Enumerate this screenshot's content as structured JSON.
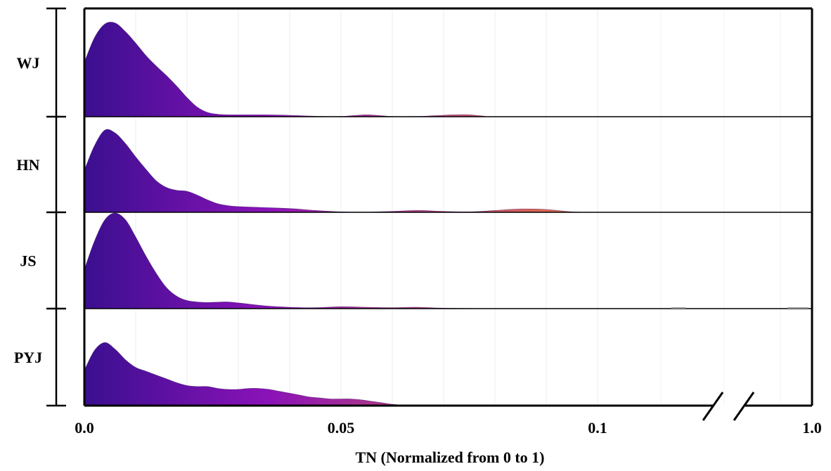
{
  "chart_data": {
    "type": "ridgeline",
    "title": "",
    "xlabel": "TN (Normalized from 0 to 1)",
    "ylabel": "",
    "xlim": [
      0,
      1.0
    ],
    "x_axis_break": [
      0.1,
      1.0
    ],
    "grid": true,
    "gradient": {
      "low": "#3a0f8f",
      "mid": "#8a12b8",
      "high": "#f07a3a"
    },
    "ticks": [
      {
        "value": 0.0,
        "label": "0.0"
      },
      {
        "value": 0.05,
        "label": "0.05"
      },
      {
        "value": 0.1,
        "label": "0.1"
      },
      {
        "value": 1.0,
        "label": "1.0"
      }
    ],
    "categories": [
      "WJ",
      "HN",
      "JS",
      "PYJ"
    ],
    "series": [
      {
        "name": "WJ",
        "x": [
          0,
          0.002,
          0.004,
          0.006,
          0.008,
          0.01,
          0.012,
          0.014,
          0.016,
          0.018,
          0.02,
          0.022,
          0.024,
          0.026,
          0.028,
          0.03,
          0.035,
          0.04,
          0.045,
          0.05,
          0.052,
          0.055,
          0.058,
          0.06,
          0.065,
          0.068,
          0.072,
          0.075,
          0.078,
          0.08,
          0.1
        ],
        "y": [
          0.57,
          0.83,
          0.97,
          0.98,
          0.89,
          0.77,
          0.64,
          0.53,
          0.43,
          0.32,
          0.2,
          0.1,
          0.045,
          0.026,
          0.02,
          0.02,
          0.02,
          0.015,
          0.005,
          0.003,
          0.01,
          0.02,
          0.01,
          0.003,
          0.003,
          0.01,
          0.02,
          0.02,
          0.005,
          0.0,
          0.0
        ]
      },
      {
        "name": "HN",
        "x": [
          0,
          0.002,
          0.004,
          0.006,
          0.008,
          0.01,
          0.012,
          0.014,
          0.016,
          0.018,
          0.02,
          0.022,
          0.024,
          0.026,
          0.028,
          0.03,
          0.035,
          0.04,
          0.045,
          0.05,
          0.055,
          0.06,
          0.065,
          0.07,
          0.075,
          0.08,
          0.085,
          0.09,
          0.095,
          0.1
        ],
        "y": [
          0.44,
          0.7,
          0.86,
          0.83,
          0.72,
          0.58,
          0.45,
          0.33,
          0.26,
          0.23,
          0.22,
          0.18,
          0.13,
          0.09,
          0.07,
          0.06,
          0.05,
          0.04,
          0.02,
          0.005,
          0.002,
          0.01,
          0.02,
          0.01,
          0.005,
          0.02,
          0.035,
          0.03,
          0.005,
          0.0
        ]
      },
      {
        "name": "JS",
        "x": [
          0,
          0.002,
          0.004,
          0.006,
          0.008,
          0.01,
          0.012,
          0.014,
          0.016,
          0.018,
          0.02,
          0.022,
          0.024,
          0.026,
          0.028,
          0.03,
          0.035,
          0.04,
          0.045,
          0.05,
          0.055,
          0.06,
          0.065,
          0.07,
          0.08,
          0.09,
          0.1
        ],
        "y": [
          0.41,
          0.71,
          0.93,
          1.0,
          0.93,
          0.75,
          0.55,
          0.37,
          0.22,
          0.13,
          0.085,
          0.07,
          0.065,
          0.068,
          0.07,
          0.06,
          0.03,
          0.015,
          0.01,
          0.02,
          0.015,
          0.01,
          0.015,
          0.005,
          0.0,
          0.0,
          0.0
        ]
      },
      {
        "name": "PYJ",
        "x": [
          0,
          0.002,
          0.004,
          0.006,
          0.008,
          0.01,
          0.012,
          0.014,
          0.016,
          0.018,
          0.02,
          0.022,
          0.024,
          0.026,
          0.028,
          0.03,
          0.032,
          0.034,
          0.036,
          0.038,
          0.04,
          0.042,
          0.044,
          0.046,
          0.048,
          0.05,
          0.052,
          0.054,
          0.056,
          0.058,
          0.06,
          0.063
        ],
        "y": [
          0.37,
          0.58,
          0.66,
          0.59,
          0.48,
          0.4,
          0.36,
          0.32,
          0.28,
          0.24,
          0.21,
          0.2,
          0.2,
          0.18,
          0.17,
          0.17,
          0.18,
          0.18,
          0.17,
          0.15,
          0.13,
          0.11,
          0.09,
          0.08,
          0.07,
          0.07,
          0.07,
          0.06,
          0.045,
          0.03,
          0.015,
          0.0
        ]
      }
    ]
  }
}
